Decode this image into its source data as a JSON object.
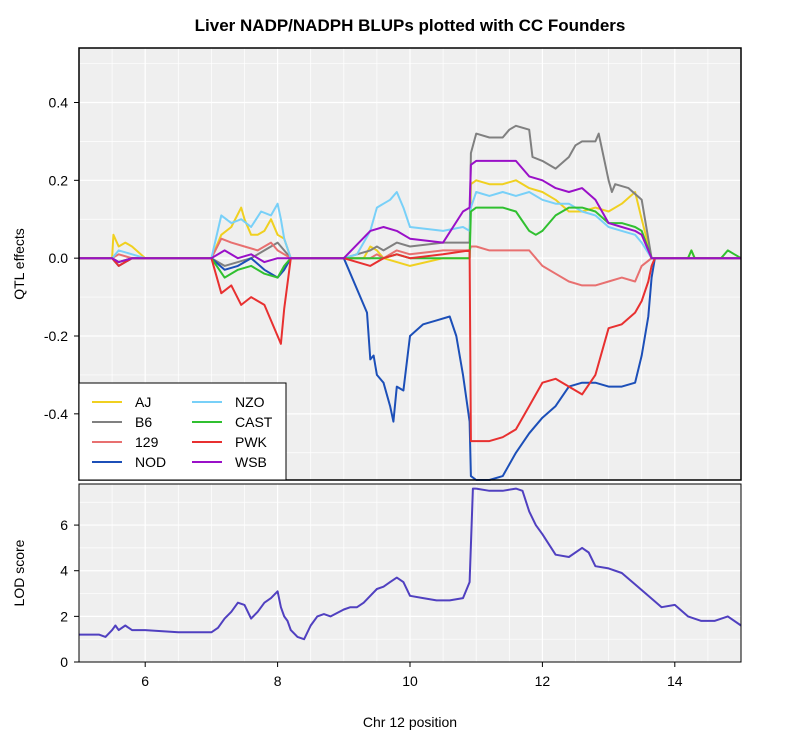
{
  "chart_data": [
    {
      "type": "line",
      "panel": "effects",
      "title": "Liver NADP/NADPH BLUPs plotted with CC Founders",
      "ylabel": "QTL effects",
      "xlim": [
        5,
        15
      ],
      "ylim": [
        -0.57,
        0.54
      ],
      "yticks": [
        0.4,
        0.2,
        0.0,
        -0.2,
        -0.4
      ],
      "ytick_labels": [
        "0.4",
        "0.2",
        "0.0",
        "-0.2",
        "-0.4"
      ],
      "grid": true,
      "legend_position": "bottom-left",
      "series": [
        {
          "name": "AJ",
          "color": "#F0D020",
          "x": [
            5.0,
            5.5,
            5.52,
            5.6,
            5.7,
            5.8,
            6.0,
            6.1,
            7.0,
            7.15,
            7.3,
            7.45,
            7.5,
            7.6,
            7.7,
            7.8,
            7.9,
            8.0,
            8.1,
            8.2,
            9.0,
            9.3,
            9.4,
            9.5,
            9.6,
            9.8,
            10.0,
            10.5,
            10.9,
            10.92,
            11.0,
            11.2,
            11.4,
            11.6,
            11.8,
            12.0,
            12.2,
            12.4,
            12.6,
            12.8,
            13.0,
            13.2,
            13.4,
            13.5,
            13.65,
            13.7,
            14.2,
            14.25,
            14.3,
            14.7,
            14.8,
            15.0
          ],
          "y": [
            0.0,
            0.0,
            0.06,
            0.03,
            0.04,
            0.03,
            0.0,
            0.0,
            0.0,
            0.06,
            0.08,
            0.13,
            0.1,
            0.06,
            0.06,
            0.07,
            0.1,
            0.06,
            0.05,
            0.0,
            0.0,
            0.0,
            0.03,
            0.02,
            0.0,
            -0.01,
            -0.02,
            0.0,
            0.0,
            0.19,
            0.2,
            0.19,
            0.19,
            0.2,
            0.18,
            0.17,
            0.15,
            0.12,
            0.12,
            0.13,
            0.12,
            0.14,
            0.17,
            0.1,
            0.0,
            0.0,
            0.0,
            0.02,
            0.0,
            0.0,
            0.0,
            0.0
          ]
        },
        {
          "name": "B6",
          "color": "#808080",
          "x": [
            5.0,
            5.5,
            5.6,
            5.8,
            6.0,
            7.0,
            7.2,
            7.4,
            7.6,
            7.8,
            8.0,
            8.1,
            8.2,
            9.0,
            9.4,
            9.5,
            9.6,
            9.8,
            10.0,
            10.5,
            10.9,
            10.92,
            11.0,
            11.2,
            11.4,
            11.5,
            11.6,
            11.8,
            11.85,
            12.0,
            12.2,
            12.4,
            12.5,
            12.6,
            12.8,
            12.85,
            13.0,
            13.05,
            13.1,
            13.3,
            13.5,
            13.65,
            13.7,
            15.0
          ],
          "y": [
            0.0,
            0.0,
            -0.01,
            0.0,
            0.0,
            0.0,
            -0.02,
            -0.01,
            0.0,
            0.02,
            0.04,
            0.02,
            0.0,
            0.0,
            0.02,
            0.03,
            0.02,
            0.04,
            0.03,
            0.04,
            0.04,
            0.27,
            0.32,
            0.31,
            0.31,
            0.33,
            0.34,
            0.33,
            0.26,
            0.25,
            0.23,
            0.26,
            0.29,
            0.3,
            0.3,
            0.32,
            0.2,
            0.17,
            0.19,
            0.18,
            0.15,
            0.0,
            0.0,
            0.0
          ]
        },
        {
          "name": "129",
          "color": "#E87070",
          "x": [
            5.0,
            5.5,
            5.6,
            5.8,
            6.0,
            7.0,
            7.15,
            7.3,
            7.5,
            7.7,
            7.9,
            8.0,
            8.1,
            8.2,
            9.0,
            9.4,
            9.5,
            9.6,
            9.8,
            10.0,
            10.5,
            10.9,
            10.92,
            11.0,
            11.2,
            11.4,
            11.6,
            11.8,
            12.0,
            12.2,
            12.4,
            12.6,
            12.8,
            13.0,
            13.2,
            13.4,
            13.5,
            13.65,
            13.7,
            15.0
          ],
          "y": [
            0.0,
            0.0,
            0.01,
            0.0,
            0.0,
            0.0,
            0.05,
            0.04,
            0.03,
            0.02,
            0.04,
            0.02,
            0.01,
            0.0,
            0.0,
            0.0,
            0.01,
            0.0,
            0.02,
            0.01,
            0.02,
            0.02,
            0.03,
            0.03,
            0.02,
            0.02,
            0.02,
            0.02,
            -0.02,
            -0.04,
            -0.06,
            -0.07,
            -0.07,
            -0.06,
            -0.05,
            -0.06,
            -0.02,
            0.0,
            0.0,
            0.0
          ]
        },
        {
          "name": "NOD",
          "color": "#1C4FB8",
          "x": [
            5.0,
            5.5,
            5.6,
            5.8,
            6.0,
            7.0,
            7.2,
            7.4,
            7.6,
            7.8,
            8.0,
            8.1,
            8.2,
            9.0,
            9.35,
            9.4,
            9.45,
            9.5,
            9.6,
            9.7,
            9.75,
            9.8,
            9.9,
            10.0,
            10.2,
            10.4,
            10.6,
            10.7,
            10.8,
            10.9,
            10.92,
            11.0,
            11.2,
            11.4,
            11.6,
            11.8,
            12.0,
            12.2,
            12.4,
            12.6,
            12.8,
            13.0,
            13.2,
            13.4,
            13.5,
            13.6,
            13.65,
            13.7,
            15.0
          ],
          "y": [
            0.0,
            0.0,
            -0.02,
            0.0,
            0.0,
            0.0,
            -0.03,
            -0.02,
            0.0,
            -0.03,
            -0.05,
            -0.03,
            0.0,
            0.0,
            -0.14,
            -0.26,
            -0.25,
            -0.3,
            -0.32,
            -0.38,
            -0.42,
            -0.33,
            -0.34,
            -0.2,
            -0.17,
            -0.16,
            -0.15,
            -0.2,
            -0.3,
            -0.42,
            -0.56,
            -0.57,
            -0.57,
            -0.56,
            -0.5,
            -0.45,
            -0.41,
            -0.38,
            -0.33,
            -0.32,
            -0.32,
            -0.33,
            -0.33,
            -0.32,
            -0.25,
            -0.15,
            -0.05,
            0.0,
            0.0
          ]
        },
        {
          "name": "NZO",
          "color": "#78D0F8",
          "x": [
            5.0,
            5.5,
            5.6,
            5.8,
            6.0,
            7.0,
            7.15,
            7.3,
            7.45,
            7.6,
            7.75,
            7.9,
            8.0,
            8.05,
            8.1,
            8.2,
            9.0,
            9.2,
            9.4,
            9.5,
            9.6,
            9.7,
            9.8,
            9.9,
            10.0,
            10.5,
            10.8,
            10.9,
            10.92,
            11.0,
            11.2,
            11.4,
            11.6,
            11.8,
            12.0,
            12.2,
            12.4,
            12.6,
            12.8,
            13.0,
            13.2,
            13.4,
            13.5,
            13.65,
            13.7,
            15.0
          ],
          "y": [
            0.0,
            0.0,
            0.02,
            0.01,
            0.0,
            0.0,
            0.11,
            0.09,
            0.1,
            0.08,
            0.12,
            0.11,
            0.14,
            0.1,
            0.05,
            0.0,
            0.0,
            0.01,
            0.07,
            0.13,
            0.14,
            0.15,
            0.17,
            0.13,
            0.08,
            0.07,
            0.08,
            0.07,
            0.13,
            0.17,
            0.16,
            0.17,
            0.16,
            0.17,
            0.15,
            0.14,
            0.14,
            0.12,
            0.11,
            0.08,
            0.07,
            0.06,
            0.04,
            0.0,
            0.0,
            0.0
          ]
        },
        {
          "name": "CAST",
          "color": "#30C030",
          "x": [
            5.0,
            5.5,
            5.6,
            5.8,
            6.0,
            7.0,
            7.2,
            7.4,
            7.6,
            7.8,
            8.0,
            8.1,
            8.2,
            9.0,
            9.4,
            9.6,
            9.8,
            10.0,
            10.5,
            10.9,
            10.92,
            11.0,
            11.2,
            11.4,
            11.6,
            11.8,
            11.9,
            12.0,
            12.2,
            12.4,
            12.6,
            12.8,
            13.0,
            13.2,
            13.4,
            13.5,
            13.65,
            13.7,
            14.2,
            14.25,
            14.3,
            14.7,
            14.8,
            14.9,
            15.0
          ],
          "y": [
            0.0,
            0.0,
            -0.01,
            0.0,
            0.0,
            0.0,
            -0.05,
            -0.03,
            -0.02,
            -0.04,
            -0.05,
            -0.02,
            0.0,
            0.0,
            0.0,
            0.0,
            0.01,
            0.0,
            0.0,
            0.0,
            0.12,
            0.13,
            0.13,
            0.13,
            0.12,
            0.07,
            0.06,
            0.07,
            0.11,
            0.13,
            0.13,
            0.12,
            0.09,
            0.09,
            0.08,
            0.07,
            0.0,
            0.0,
            0.0,
            0.02,
            0.0,
            0.0,
            0.02,
            0.01,
            0.0
          ]
        },
        {
          "name": "PWK",
          "color": "#E83030",
          "x": [
            5.0,
            5.5,
            5.6,
            5.8,
            6.0,
            7.0,
            7.15,
            7.3,
            7.45,
            7.6,
            7.8,
            8.0,
            8.05,
            8.1,
            8.2,
            9.0,
            9.4,
            9.6,
            9.8,
            10.0,
            10.5,
            10.9,
            10.92,
            11.0,
            11.2,
            11.4,
            11.6,
            11.8,
            12.0,
            12.2,
            12.4,
            12.6,
            12.8,
            13.0,
            13.2,
            13.4,
            13.5,
            13.6,
            13.65,
            13.7,
            15.0
          ],
          "y": [
            0.0,
            0.0,
            -0.02,
            0.0,
            0.0,
            0.0,
            -0.09,
            -0.07,
            -0.12,
            -0.1,
            -0.12,
            -0.2,
            -0.22,
            -0.13,
            0.0,
            0.0,
            -0.02,
            0.0,
            0.01,
            0.0,
            0.01,
            0.02,
            -0.47,
            -0.47,
            -0.47,
            -0.46,
            -0.44,
            -0.38,
            -0.32,
            -0.31,
            -0.33,
            -0.35,
            -0.3,
            -0.18,
            -0.17,
            -0.14,
            -0.11,
            -0.06,
            -0.02,
            0.0,
            0.0
          ]
        },
        {
          "name": "WSB",
          "color": "#9A10C8",
          "x": [
            5.0,
            5.5,
            5.6,
            5.8,
            6.0,
            7.0,
            7.2,
            7.4,
            7.6,
            7.8,
            8.0,
            8.1,
            8.2,
            9.0,
            9.4,
            9.6,
            9.8,
            10.0,
            10.5,
            10.8,
            10.9,
            10.92,
            11.0,
            11.2,
            11.4,
            11.6,
            11.8,
            12.0,
            12.2,
            12.4,
            12.6,
            12.8,
            13.0,
            13.2,
            13.4,
            13.5,
            13.65,
            13.7,
            15.0
          ],
          "y": [
            0.0,
            0.0,
            -0.01,
            0.0,
            0.0,
            0.0,
            0.02,
            0.0,
            0.01,
            -0.01,
            0.0,
            0.0,
            0.0,
            0.0,
            0.07,
            0.08,
            0.07,
            0.05,
            0.04,
            0.12,
            0.13,
            0.24,
            0.25,
            0.25,
            0.25,
            0.25,
            0.21,
            0.2,
            0.18,
            0.17,
            0.18,
            0.15,
            0.09,
            0.08,
            0.07,
            0.06,
            0.0,
            0.0,
            0.0
          ]
        }
      ]
    },
    {
      "type": "line",
      "panel": "lod",
      "xlabel": "Chr 12 position",
      "ylabel": "LOD score",
      "xlim": [
        5,
        15
      ],
      "ylim": [
        0,
        7.8
      ],
      "xticks": [
        6,
        8,
        10,
        12,
        14
      ],
      "xtick_labels": [
        "6",
        "8",
        "10",
        "12",
        "14"
      ],
      "yticks": [
        0,
        2,
        4,
        6
      ],
      "ytick_labels": [
        "0",
        "2",
        "4",
        "6"
      ],
      "grid": true,
      "series": [
        {
          "color": "#5040C0",
          "x": [
            5.0,
            5.2,
            5.3,
            5.4,
            5.5,
            5.55,
            5.6,
            5.7,
            5.8,
            6.0,
            6.5,
            7.0,
            7.1,
            7.2,
            7.3,
            7.4,
            7.5,
            7.6,
            7.7,
            7.8,
            7.9,
            8.0,
            8.05,
            8.1,
            8.15,
            8.2,
            8.3,
            8.4,
            8.5,
            8.6,
            8.7,
            8.8,
            9.0,
            9.1,
            9.2,
            9.3,
            9.4,
            9.5,
            9.6,
            9.7,
            9.8,
            9.9,
            10.0,
            10.2,
            10.4,
            10.6,
            10.8,
            10.9,
            10.95,
            11.0,
            11.2,
            11.4,
            11.6,
            11.7,
            11.8,
            11.9,
            12.0,
            12.2,
            12.4,
            12.6,
            12.7,
            12.8,
            13.0,
            13.2,
            13.4,
            13.6,
            13.8,
            14.0,
            14.2,
            14.4,
            14.6,
            14.8,
            15.0
          ],
          "y": [
            1.2,
            1.2,
            1.2,
            1.1,
            1.4,
            1.6,
            1.4,
            1.6,
            1.4,
            1.4,
            1.3,
            1.3,
            1.5,
            1.9,
            2.2,
            2.6,
            2.5,
            1.9,
            2.2,
            2.6,
            2.8,
            3.1,
            2.4,
            2.0,
            1.8,
            1.4,
            1.1,
            1.0,
            1.6,
            2.0,
            2.1,
            2.0,
            2.3,
            2.4,
            2.4,
            2.6,
            2.9,
            3.2,
            3.3,
            3.5,
            3.7,
            3.5,
            2.9,
            2.8,
            2.7,
            2.7,
            2.8,
            3.5,
            7.6,
            7.6,
            7.5,
            7.5,
            7.6,
            7.5,
            6.6,
            6.0,
            5.6,
            4.7,
            4.6,
            5.0,
            4.8,
            4.2,
            4.1,
            3.9,
            3.4,
            2.9,
            2.4,
            2.5,
            2.0,
            1.8,
            1.8,
            2.0,
            1.6
          ]
        }
      ]
    }
  ]
}
